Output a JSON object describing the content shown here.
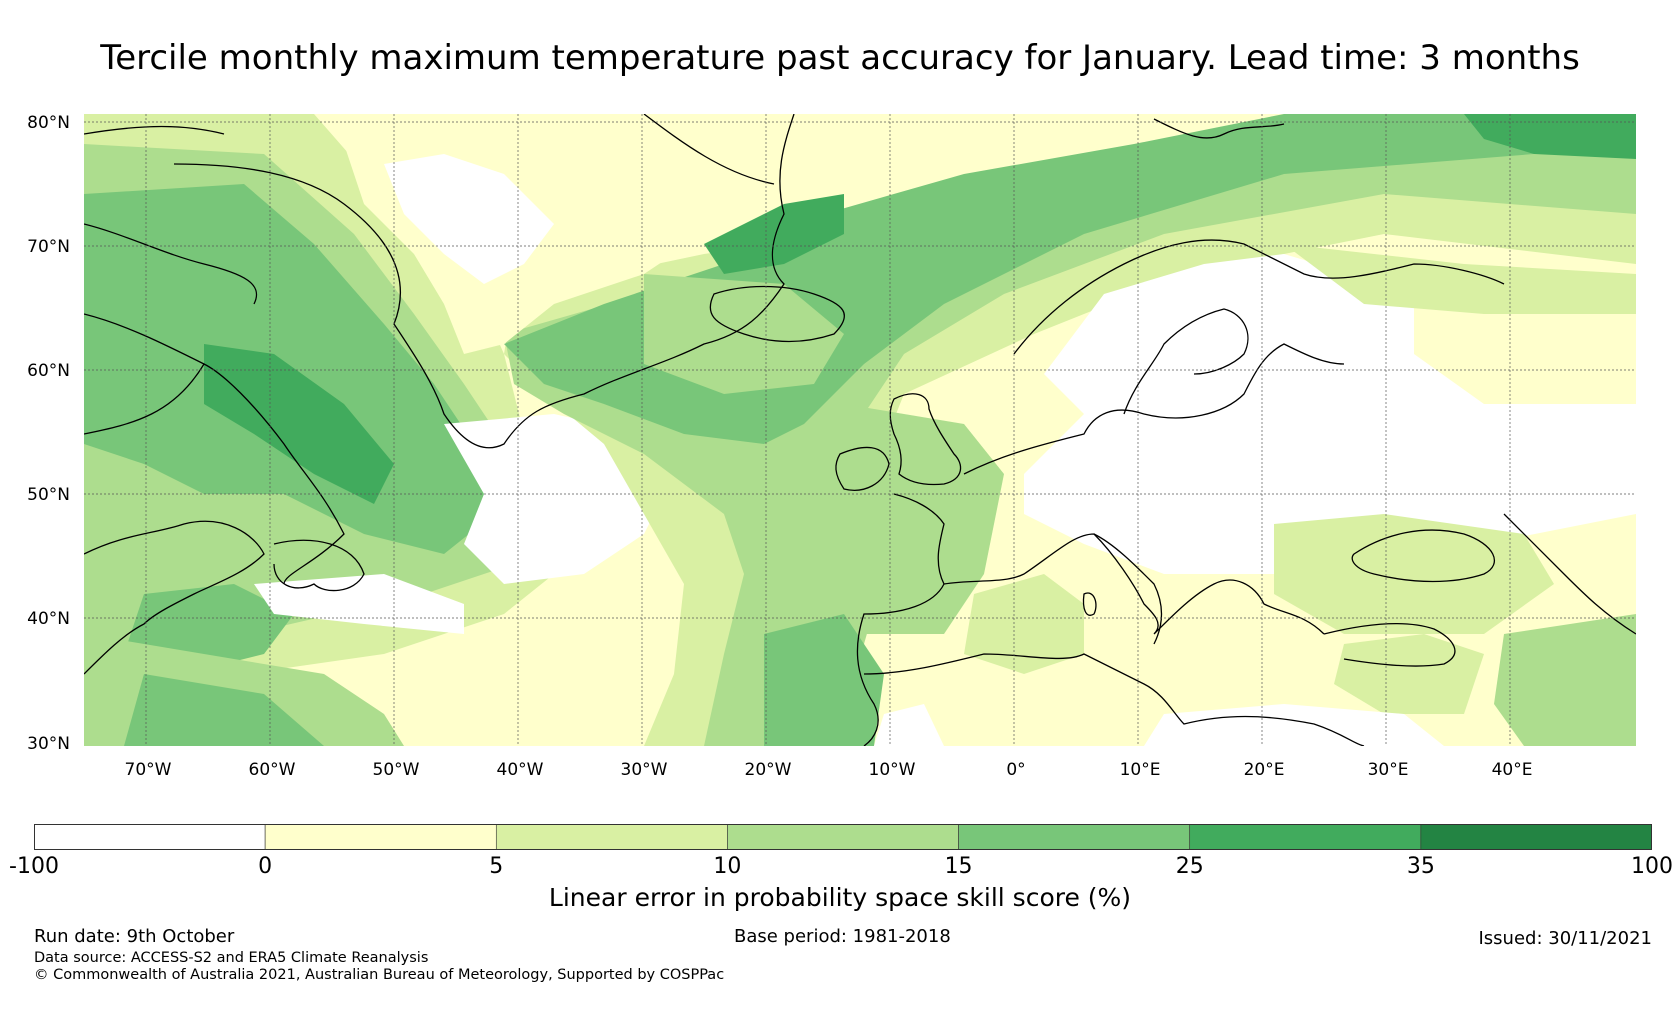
{
  "title": "Tercile monthly maximum temperature past accuracy for January. Lead time: 3 months",
  "map": {
    "lat_labels": [
      "80°N",
      "70°N",
      "60°N",
      "50°N",
      "40°N",
      "30°N"
    ],
    "lon_labels": [
      "70°W",
      "60°W",
      "50°W",
      "40°W",
      "30°W",
      "20°W",
      "10°W",
      "0°",
      "10°E",
      "20°E",
      "30°E",
      "40°E"
    ],
    "colors": {
      "white": "#ffffff",
      "c0": "#ffffcc",
      "c5": "#d9f0a3",
      "c10": "#addd8e",
      "c15": "#78c679",
      "c25": "#41ab5d",
      "c35": "#238443",
      "land_line": "#000000",
      "grid_line": "#555555"
    }
  },
  "colorbar": {
    "ticks": [
      "-100",
      "0",
      "5",
      "10",
      "15",
      "25",
      "35",
      "100"
    ],
    "bins": [
      {
        "from": "-100",
        "to": "0",
        "color": "#ffffff"
      },
      {
        "from": "0",
        "to": "5",
        "color": "#ffffcc"
      },
      {
        "from": "5",
        "to": "10",
        "color": "#d9f0a3"
      },
      {
        "from": "10",
        "to": "15",
        "color": "#addd8e"
      },
      {
        "from": "15",
        "to": "25",
        "color": "#78c679"
      },
      {
        "from": "25",
        "to": "35",
        "color": "#41ab5d"
      },
      {
        "from": "35",
        "to": "100",
        "color": "#238443"
      }
    ],
    "label": "Linear error in probability space skill score (%)"
  },
  "footer": {
    "run_date": "Run date: 9th October",
    "base_period": "Base period: 1981-2018",
    "issued": "Issued: 30/11/2021",
    "data_source": "Data source: ACCESS-S2 and ERA5 Climate Reanalysis",
    "copyright": "© Commonwealth of Australia 2021, Australian Bureau of Meteorology, Supported by COSPPac"
  }
}
